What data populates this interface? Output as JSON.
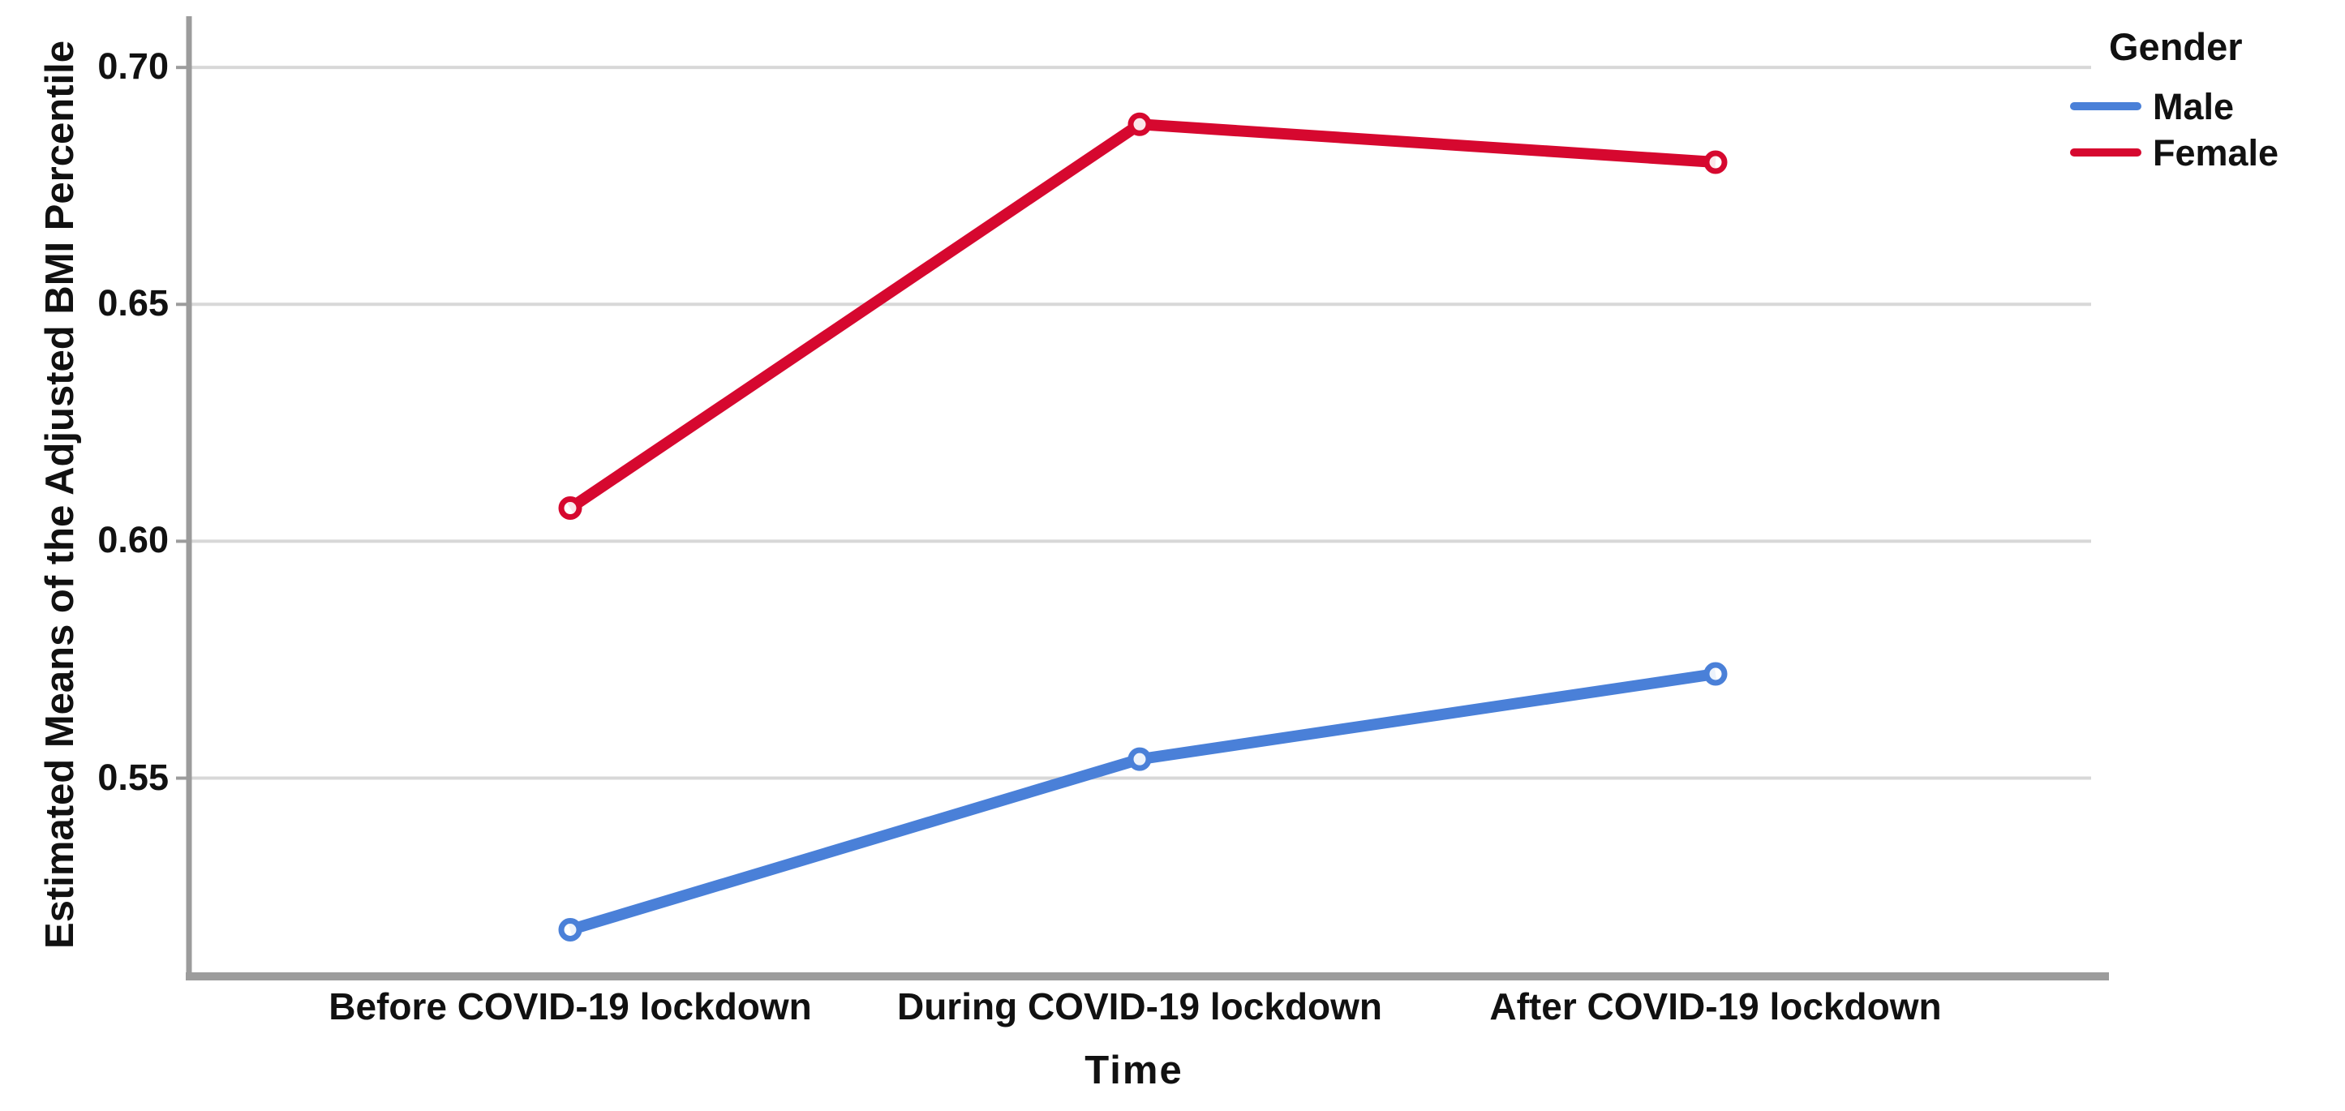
{
  "figure": {
    "background": "#ffffff"
  },
  "chart_data": {
    "type": "line",
    "title": "",
    "xlabel": "Time",
    "ylabel": "Estimated Means of the Adjusted BMI Percentile",
    "categories": [
      "Before COVID-19 lockdown",
      "During COVID-19 lockdown",
      "After COVID-19 lockdown"
    ],
    "series": [
      {
        "name": "Male",
        "color": "#4A80D8",
        "values": [
          0.518,
          0.554,
          0.572
        ]
      },
      {
        "name": "Female",
        "color": "#D6082F",
        "values": [
          0.607,
          0.688,
          0.68
        ]
      }
    ],
    "y_ticks": [
      0.55,
      0.6,
      0.65,
      0.7
    ],
    "y_tick_labels": [
      "0.55",
      "0.60",
      "0.65",
      "0.70"
    ],
    "ylim": [
      0.5085,
      0.7103
    ],
    "grid": "horizontal",
    "marker": "open-circle",
    "legend": {
      "title": "Gender",
      "position": "top-right",
      "entries": [
        "Male",
        "Female"
      ]
    }
  },
  "colors": {
    "grid": "#D8D8D8",
    "axis": "#9C9C9C",
    "text": "#111111"
  }
}
